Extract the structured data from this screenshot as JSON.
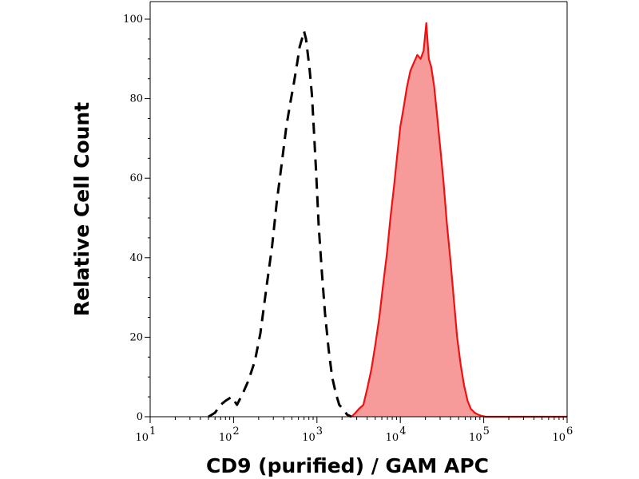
{
  "chart_data": {
    "type": "area",
    "xlabel": "CD9 (purified) / GAM APC",
    "ylabel": "Relative Cell Count",
    "x_scale": "log",
    "xlim": [
      10,
      1000000
    ],
    "ylim": [
      0,
      100
    ],
    "x_ticks": [
      {
        "value": 10,
        "base": "10",
        "exp": "1"
      },
      {
        "value": 100,
        "base": "10",
        "exp": "2"
      },
      {
        "value": 1000,
        "base": "10",
        "exp": "3"
      },
      {
        "value": 10000,
        "base": "10",
        "exp": "4"
      },
      {
        "value": 100000,
        "base": "10",
        "exp": "5"
      },
      {
        "value": 1000000,
        "base": "10",
        "exp": "6"
      }
    ],
    "y_ticks": [
      "0",
      "20",
      "40",
      "60",
      "80",
      "100"
    ],
    "grid": false,
    "legend": "none",
    "series": [
      {
        "style": "dashed",
        "color": "#000000",
        "x": [
          50,
          60,
          70,
          80,
          95,
          110,
          130,
          150,
          180,
          210,
          250,
          290,
          330,
          380,
          430,
          480,
          530,
          580,
          620,
          660,
          700,
          740,
          780,
          820,
          870,
          920,
          980,
          1050,
          1150,
          1250,
          1380,
          1520,
          1680,
          1850,
          2050,
          2300,
          2600
        ],
        "y": [
          0,
          1,
          3,
          4,
          5,
          3,
          6,
          9,
          14,
          21,
          33,
          43,
          54,
          64,
          73,
          79,
          84,
          89,
          93,
          95,
          97,
          95,
          91,
          87,
          81,
          72,
          61,
          48,
          36,
          26,
          17,
          10,
          6,
          3,
          2,
          0.5,
          0
        ]
      },
      {
        "style": "filled",
        "color": "#ee1111",
        "fill": "#f79a9a",
        "x": [
          2600,
          2900,
          3200,
          3600,
          4000,
          4500,
          5000,
          5600,
          6200,
          6900,
          7600,
          8400,
          9200,
          10000,
          11000,
          12000,
          13200,
          14500,
          16000,
          17500,
          19000,
          20500,
          22000,
          23500,
          25500,
          27500,
          30000,
          33000,
          36000,
          40000,
          44000,
          48000,
          53000,
          58000,
          64000,
          70000,
          78000,
          86000,
          95000,
          105000,
          1000000
        ],
        "y": [
          0,
          1,
          2,
          3,
          7,
          12,
          18,
          25,
          33,
          41,
          50,
          58,
          66,
          73,
          78,
          83,
          87,
          89,
          91,
          90,
          92,
          99,
          90,
          88,
          83,
          76,
          68,
          59,
          49,
          39,
          29,
          20,
          13,
          8,
          4,
          2,
          1,
          0.5,
          0.2,
          0,
          0
        ]
      }
    ]
  }
}
